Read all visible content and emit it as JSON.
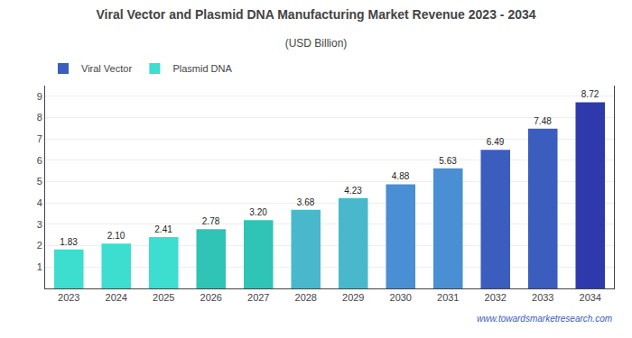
{
  "chart_data": {
    "type": "bar",
    "title": "Viral Vector and Plasmid DNA Manufacturing Market Revenue 2023 - 2034",
    "subtitle": "(USD Billion)",
    "categories": [
      "2023",
      "2024",
      "2025",
      "2026",
      "2027",
      "2028",
      "2029",
      "2030",
      "2031",
      "2032",
      "2033",
      "2034"
    ],
    "values": [
      1.83,
      2.1,
      2.41,
      2.78,
      3.2,
      3.68,
      4.23,
      4.88,
      5.63,
      6.49,
      7.48,
      8.72
    ],
    "value_labels": [
      "1.83",
      "2.10",
      "2.41",
      "2.78",
      "3.20",
      "3.68",
      "4.23",
      "4.88",
      "5.63",
      "6.49",
      "7.48",
      "8.72"
    ],
    "colors": [
      "#3DDDD0",
      "#3DDDD0",
      "#3DDDD0",
      "#2FC4B5",
      "#2FC4B5",
      "#4AB8CC",
      "#4AB8CC",
      "#4A8ED4",
      "#4A8ED4",
      "#3A5DBE",
      "#3A5DBE",
      "#2E3AAB"
    ],
    "data_labels": true,
    "ylim": [
      0,
      9.5
    ],
    "yticks": [
      1,
      2,
      3,
      4,
      5,
      6,
      7,
      8,
      9
    ],
    "grid": true,
    "legend": "upper left",
    "legend_items": [
      {
        "name": "Viral Vector",
        "color": "#3A5DBE"
      },
      {
        "name": "Plasmid DNA",
        "color": "#3DDDD0"
      }
    ],
    "annotations": [
      "www.towardsmarketresearch.com"
    ]
  }
}
